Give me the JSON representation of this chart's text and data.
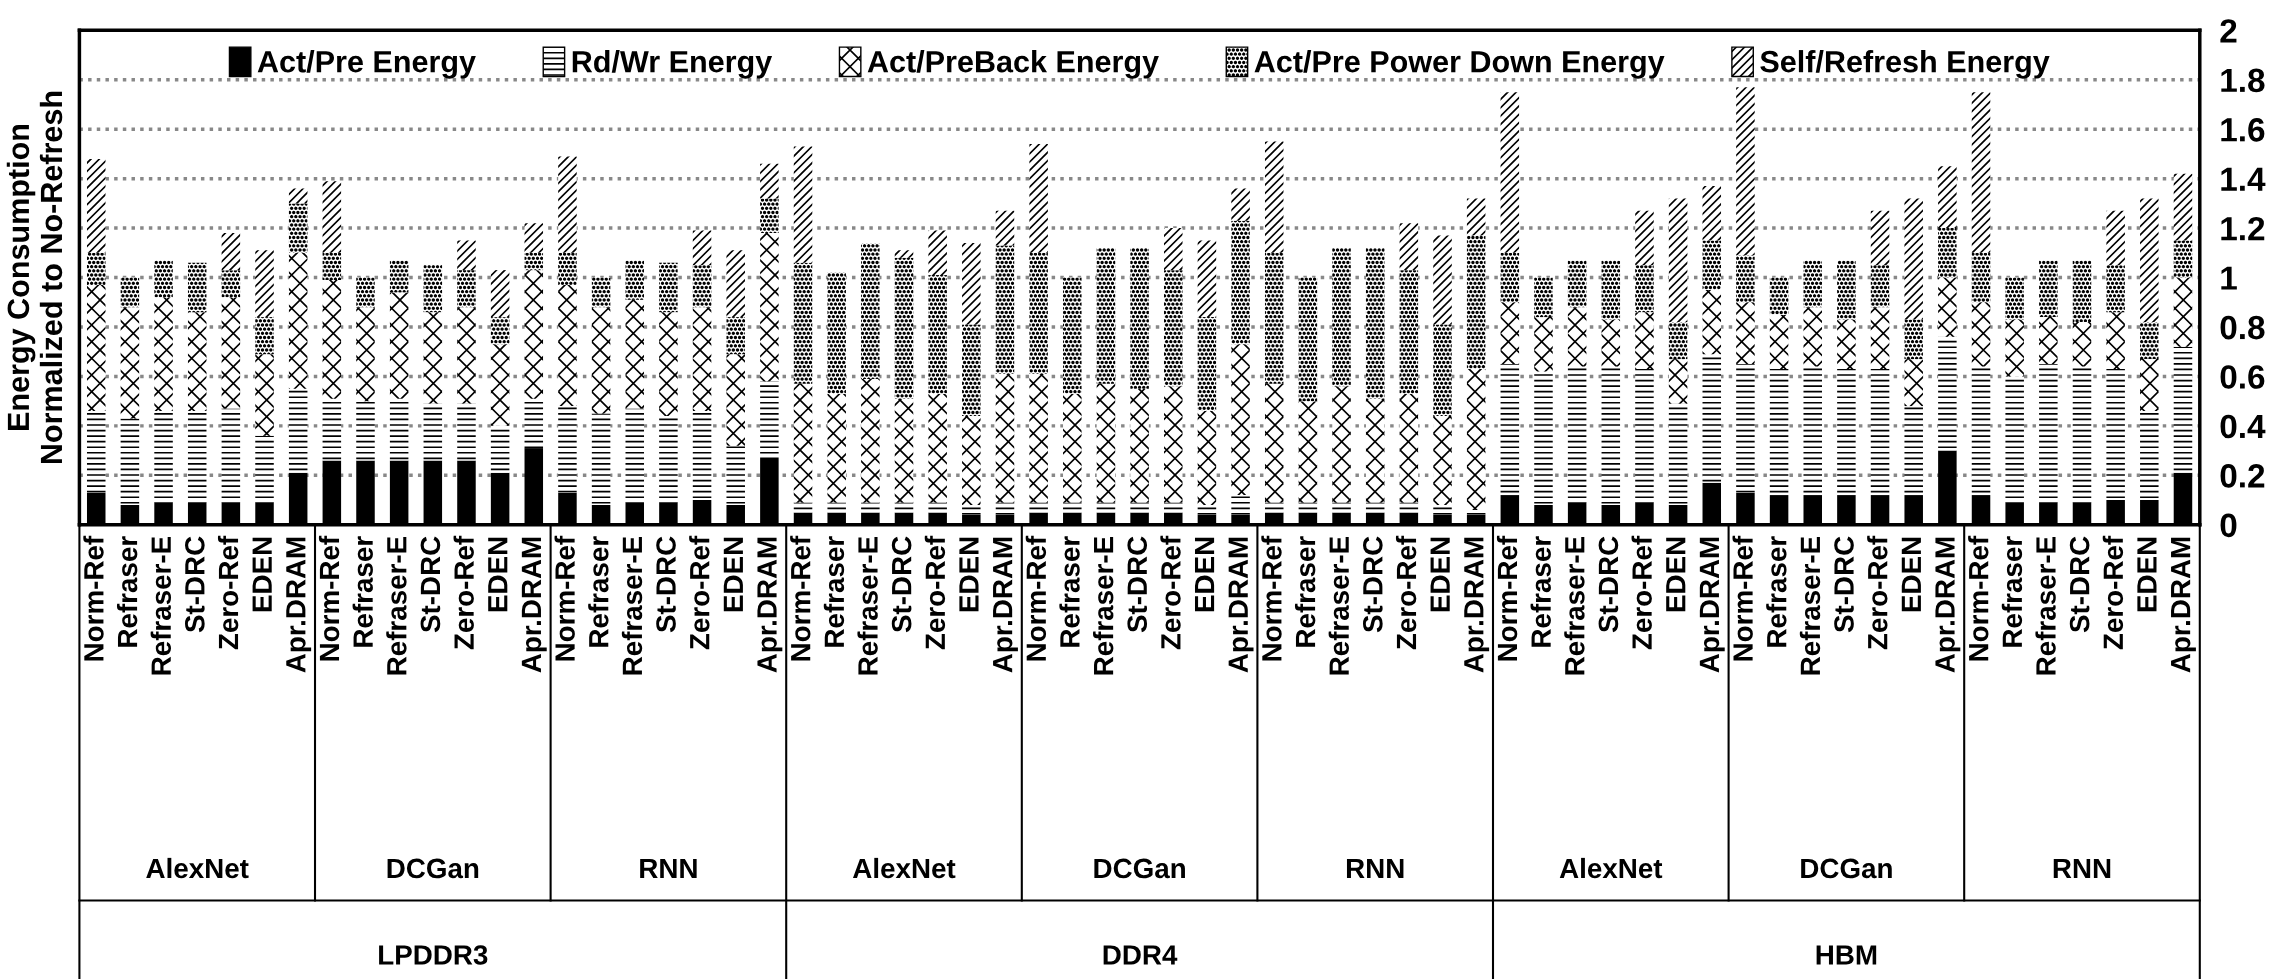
{
  "chart_data": {
    "type": "bar",
    "stacked": true,
    "ylabel": "Energy Consumption\nNormalized to No-Refresh",
    "categories": [
      "Norm-Ref",
      "Refraser",
      "Refraser-E",
      "St-DRC",
      "Zero-Ref",
      "EDEN",
      "Apr.DRAM",
      "Norm-Ref",
      "Refraser",
      "Refraser-E",
      "St-DRC",
      "Zero-Ref",
      "EDEN",
      "Apr.DRAM",
      "Norm-Ref",
      "Refraser",
      "Refraser-E",
      "St-DRC",
      "Zero-Ref",
      "EDEN",
      "Apr.DRAM",
      "Norm-Ref",
      "Refraser",
      "Refraser-E",
      "St-DRC",
      "Zero-Ref",
      "EDEN",
      "Apr.DRAM",
      "Norm-Ref",
      "Refraser",
      "Refraser-E",
      "St-DRC",
      "Zero-Ref",
      "EDEN",
      "Apr.DRAM",
      "Norm-Ref",
      "Refraser",
      "Refraser-E",
      "St-DRC",
      "Zero-Ref",
      "EDEN",
      "Apr.DRAM",
      "Norm-Ref",
      "Refraser",
      "Refraser-E",
      "St-DRC",
      "Zero-Ref",
      "EDEN",
      "Apr.DRAM",
      "Norm-Ref",
      "Refraser",
      "Refraser-E",
      "St-DRC",
      "Zero-Ref",
      "EDEN",
      "Apr.DRAM",
      "Norm-Ref",
      "Refraser",
      "Refraser-E",
      "St-DRC",
      "Zero-Ref",
      "EDEN",
      "Apr.DRAM"
    ],
    "series": [
      {
        "name": "Act/Pre Energy",
        "color": "#000000",
        "values": [
          0.13,
          0.08,
          0.09,
          0.09,
          0.09,
          0.09,
          0.21,
          0.26,
          0.26,
          0.26,
          0.26,
          0.26,
          0.21,
          0.31,
          0.13,
          0.08,
          0.09,
          0.09,
          0.1,
          0.08,
          0.27,
          0.05,
          0.05,
          0.05,
          0.05,
          0.05,
          0.04,
          0.04,
          0.05,
          0.05,
          0.05,
          0.05,
          0.05,
          0.04,
          0.04,
          0.05,
          0.05,
          0.05,
          0.05,
          0.05,
          0.04,
          0.04,
          0.12,
          0.08,
          0.09,
          0.08,
          0.09,
          0.08,
          0.17,
          0.13,
          0.12,
          0.12,
          0.12,
          0.12,
          0.12,
          0.3,
          0.12,
          0.09,
          0.09,
          0.09,
          0.1,
          0.1,
          0.21
        ]
      },
      {
        "name": "Rd/Wr Energy",
        "color": "#ffffff",
        "values": [
          0.33,
          0.35,
          0.37,
          0.37,
          0.38,
          0.27,
          0.34,
          0.25,
          0.24,
          0.25,
          0.23,
          0.23,
          0.19,
          0.2,
          0.35,
          0.37,
          0.38,
          0.35,
          0.36,
          0.24,
          0.31,
          0.04,
          0.04,
          0.04,
          0.04,
          0.04,
          0.04,
          0.05,
          0.04,
          0.04,
          0.04,
          0.04,
          0.04,
          0.04,
          0.08,
          0.04,
          0.04,
          0.04,
          0.04,
          0.04,
          0.04,
          0.02,
          0.53,
          0.54,
          0.55,
          0.56,
          0.54,
          0.41,
          0.52,
          0.52,
          0.51,
          0.52,
          0.51,
          0.51,
          0.36,
          0.46,
          0.52,
          0.51,
          0.56,
          0.55,
          0.53,
          0.36,
          0.51
        ]
      },
      {
        "name": "Act/PreBack Energy",
        "color": "#ffffff",
        "values": [
          0.51,
          0.45,
          0.46,
          0.4,
          0.45,
          0.33,
          0.55,
          0.48,
          0.38,
          0.43,
          0.37,
          0.39,
          0.33,
          0.52,
          0.49,
          0.43,
          0.44,
          0.42,
          0.42,
          0.37,
          0.6,
          0.48,
          0.44,
          0.5,
          0.42,
          0.44,
          0.36,
          0.52,
          0.52,
          0.44,
          0.48,
          0.46,
          0.47,
          0.38,
          0.61,
          0.48,
          0.41,
          0.47,
          0.42,
          0.44,
          0.36,
          0.57,
          0.25,
          0.22,
          0.24,
          0.19,
          0.23,
          0.18,
          0.26,
          0.25,
          0.22,
          0.24,
          0.2,
          0.25,
          0.19,
          0.24,
          0.26,
          0.23,
          0.19,
          0.18,
          0.23,
          0.21,
          0.28
        ]
      },
      {
        "name": "Act/Pre Power Down Energy",
        "color": "#ffffff",
        "values": [
          0.13,
          0.12,
          0.15,
          0.2,
          0.11,
          0.15,
          0.2,
          0.11,
          0.12,
          0.13,
          0.19,
          0.15,
          0.11,
          0.07,
          0.13,
          0.12,
          0.16,
          0.2,
          0.17,
          0.15,
          0.14,
          0.49,
          0.49,
          0.55,
          0.57,
          0.48,
          0.37,
          0.52,
          0.49,
          0.47,
          0.55,
          0.57,
          0.47,
          0.38,
          0.5,
          0.53,
          0.5,
          0.56,
          0.61,
          0.5,
          0.37,
          0.54,
          0.2,
          0.16,
          0.19,
          0.24,
          0.19,
          0.15,
          0.2,
          0.19,
          0.15,
          0.19,
          0.24,
          0.17,
          0.16,
          0.2,
          0.2,
          0.17,
          0.23,
          0.25,
          0.19,
          0.15,
          0.15
        ]
      },
      {
        "name": "Self/Refresh Energy",
        "color": "#ffffff",
        "values": [
          0.38,
          0,
          0,
          0,
          0.15,
          0.27,
          0.06,
          0.29,
          0,
          0,
          0,
          0.12,
          0.19,
          0.12,
          0.39,
          0,
          0,
          0,
          0.14,
          0.27,
          0.14,
          0.47,
          0,
          0,
          0.03,
          0.18,
          0.33,
          0.14,
          0.44,
          0,
          0,
          0,
          0.17,
          0.31,
          0.13,
          0.45,
          0,
          0,
          0,
          0.19,
          0.36,
          0.15,
          0.65,
          0,
          0,
          0,
          0.22,
          0.5,
          0.22,
          0.68,
          0,
          0,
          0,
          0.22,
          0.49,
          0.25,
          0.65,
          0,
          0,
          0,
          0.22,
          0.5,
          0.27
        ]
      }
    ],
    "annotations": [
      "AlexNet",
      "DCGan",
      "RNN",
      "AlexNet",
      "DCGan",
      "RNN",
      "AlexNet",
      "DCGan",
      "RNN",
      "LPDDR3",
      "DDR4",
      "HBM"
    ],
    "ylim": [
      0,
      2
    ],
    "yticks": [
      0,
      0.2,
      0.4,
      0.6,
      0.8,
      1,
      1.2,
      1.4,
      1.6,
      1.8,
      2
    ],
    "grid": "y",
    "legend": "top"
  }
}
